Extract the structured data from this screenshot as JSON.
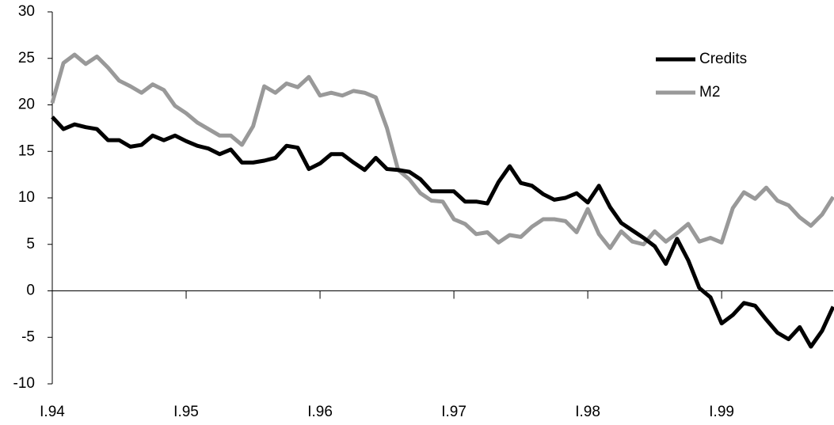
{
  "chart_data": {
    "type": "line",
    "categories": [
      "I.94",
      null,
      null,
      null,
      null,
      null,
      null,
      null,
      null,
      null,
      null,
      null,
      "I.95",
      null,
      null,
      null,
      null,
      null,
      null,
      null,
      null,
      null,
      null,
      null,
      "I.96",
      null,
      null,
      null,
      null,
      null,
      null,
      null,
      null,
      null,
      null,
      null,
      "I.97",
      null,
      null,
      null,
      null,
      null,
      null,
      null,
      null,
      null,
      null,
      null,
      "I.98",
      null,
      null,
      null,
      null,
      null,
      null,
      null,
      null,
      null,
      null,
      null,
      "I.99",
      null,
      null,
      null,
      null,
      null,
      null,
      null,
      null,
      null,
      null
    ],
    "series": [
      {
        "name": "Credits",
        "color": "#000000",
        "values": [
          18.7,
          17.4,
          17.9,
          17.6,
          17.4,
          16.2,
          16.2,
          15.5,
          15.7,
          16.7,
          16.2,
          16.7,
          16.1,
          15.6,
          15.3,
          14.7,
          15.2,
          13.8,
          13.8,
          14.0,
          14.3,
          15.6,
          15.4,
          13.1,
          13.7,
          14.7,
          14.7,
          13.8,
          13.0,
          14.3,
          13.1,
          13.0,
          12.8,
          12.0,
          10.7,
          10.7,
          10.7,
          9.6,
          9.6,
          9.4,
          11.7,
          13.4,
          11.6,
          11.3,
          10.4,
          9.8,
          10.0,
          10.5,
          9.5,
          11.3,
          9.0,
          7.3,
          6.5,
          5.7,
          4.8,
          2.9,
          5.6,
          3.3,
          0.3,
          -0.7,
          -3.5,
          -2.6,
          -1.3,
          -1.6,
          -3.1,
          -4.5,
          -5.2,
          -3.9,
          -6.0,
          -4.3,
          -1.7
        ]
      },
      {
        "name": "M2",
        "color": "#999999",
        "values": [
          20.2,
          24.5,
          25.4,
          24.4,
          25.2,
          24.0,
          22.6,
          22.0,
          21.3,
          22.2,
          21.6,
          19.9,
          19.1,
          18.1,
          17.4,
          16.7,
          16.7,
          15.7,
          17.7,
          22.0,
          21.3,
          22.3,
          21.9,
          23.0,
          21.0,
          21.3,
          21.0,
          21.5,
          21.3,
          20.8,
          17.5,
          13.0,
          12.0,
          10.5,
          9.7,
          9.6,
          7.7,
          7.2,
          6.1,
          6.3,
          5.2,
          6.0,
          5.8,
          6.9,
          7.7,
          7.7,
          7.5,
          6.3,
          8.8,
          6.1,
          4.6,
          6.4,
          5.3,
          5.0,
          6.4,
          5.3,
          6.2,
          7.2,
          5.3,
          5.7,
          5.2,
          8.9,
          10.6,
          9.9,
          11.1,
          9.7,
          9.2,
          7.9,
          7.0,
          8.2,
          10.1
        ]
      }
    ],
    "ylim": [
      -10,
      30
    ],
    "yticks": [
      -10,
      -5,
      0,
      5,
      10,
      15,
      20,
      25,
      30
    ],
    "legend": "upper right"
  }
}
